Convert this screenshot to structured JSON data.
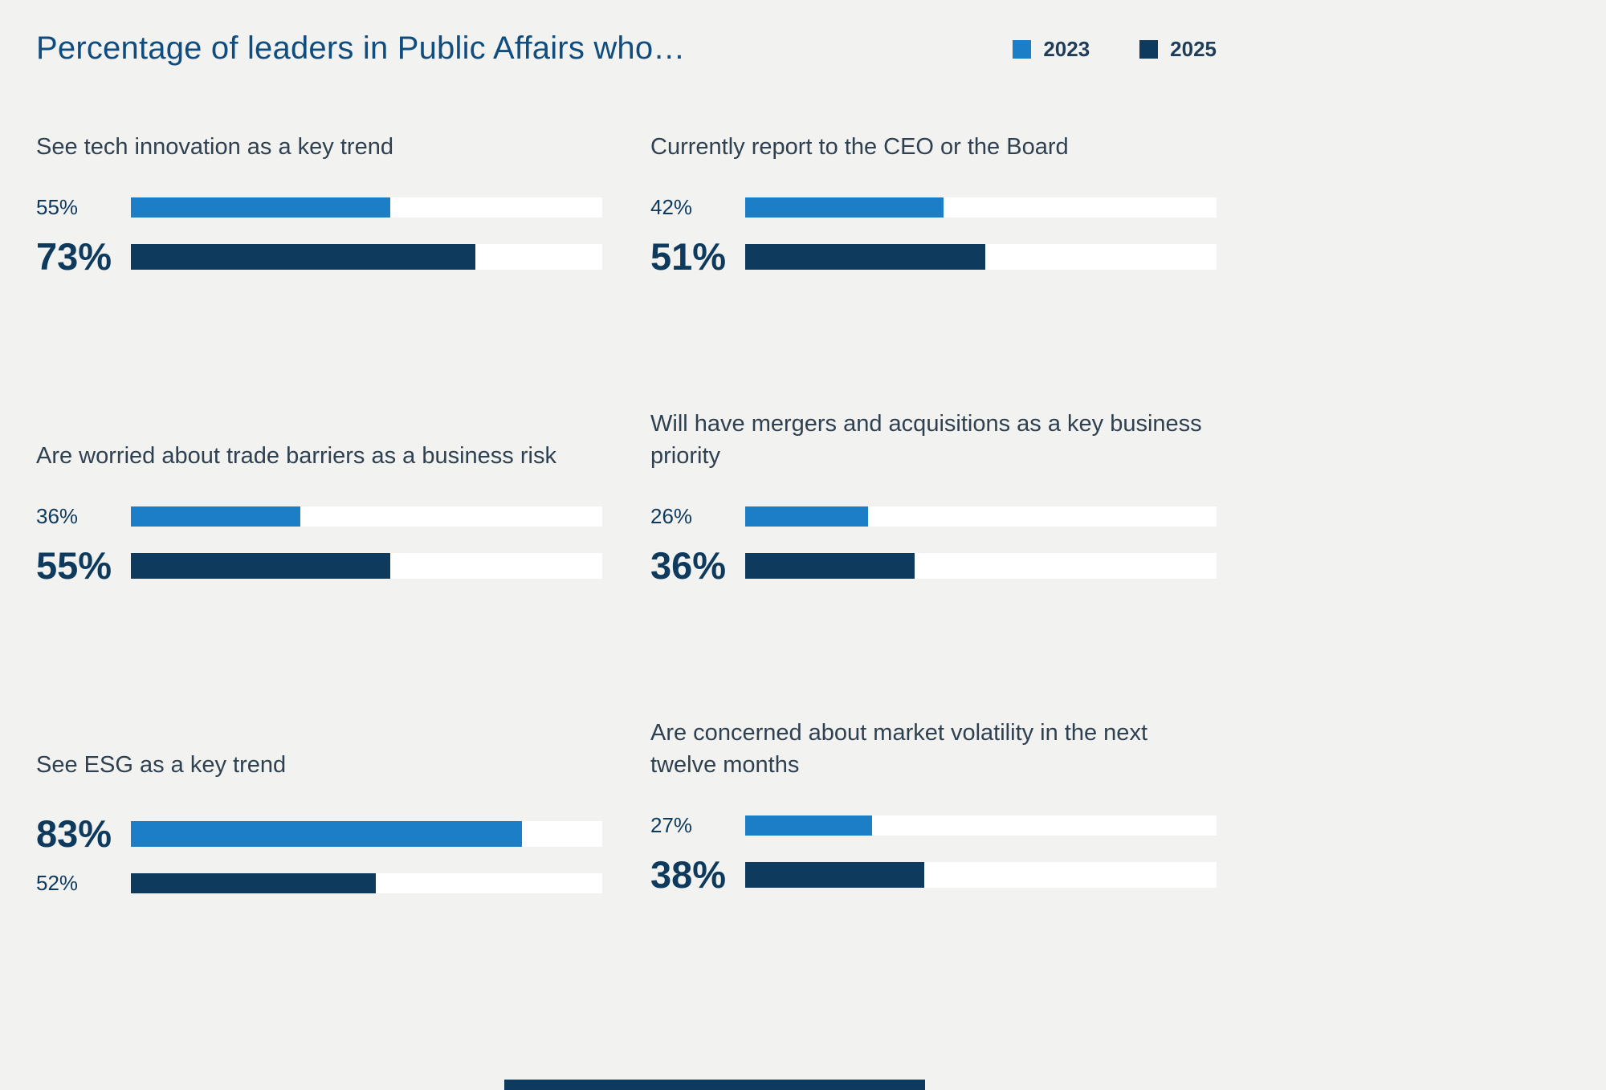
{
  "page": {
    "title": "Percentage of leaders in Public Affairs who…",
    "background": "#f2f2f0"
  },
  "legend": {
    "items": [
      {
        "label": "2023",
        "color": "#1b7ec6"
      },
      {
        "label": "2025",
        "color": "#0e3a5e"
      }
    ]
  },
  "colors": {
    "series_2023": "#1b7ec6",
    "series_2025": "#0e3a5e",
    "bar_track": "#ffffff",
    "title_text": "#0f4c7f",
    "panel_title_text": "#2f4050",
    "value_text": "#0e3a5e"
  },
  "chart_data": {
    "type": "bar",
    "orientation": "horizontal",
    "unit": "percent",
    "title": "Percentage of leaders in Public Affairs who…",
    "series_names": [
      "2023",
      "2025"
    ],
    "xlim": [
      0,
      100
    ],
    "legend_position": "top-right",
    "grid": false,
    "panels": [
      {
        "title": "See tech innovation as a key trend",
        "series": [
          {
            "name": "2023",
            "value": 55,
            "label": "55%",
            "emphasized": false
          },
          {
            "name": "2025",
            "value": 73,
            "label": "73%",
            "emphasized": true
          }
        ]
      },
      {
        "title": "Currently report to the CEO or the Board",
        "series": [
          {
            "name": "2023",
            "value": 42,
            "label": "42%",
            "emphasized": false
          },
          {
            "name": "2025",
            "value": 51,
            "label": "51%",
            "emphasized": true
          }
        ]
      },
      {
        "title": "Are worried about trade barriers as a business risk",
        "series": [
          {
            "name": "2023",
            "value": 36,
            "label": "36%",
            "emphasized": false
          },
          {
            "name": "2025",
            "value": 55,
            "label": "55%",
            "emphasized": true
          }
        ]
      },
      {
        "title": "Will have mergers and acquisitions as a key business priority",
        "series": [
          {
            "name": "2023",
            "value": 26,
            "label": "26%",
            "emphasized": false
          },
          {
            "name": "2025",
            "value": 36,
            "label": "36%",
            "emphasized": true
          }
        ]
      },
      {
        "title": "See ESG as a key trend",
        "series": [
          {
            "name": "2023",
            "value": 83,
            "label": "83%",
            "emphasized": true
          },
          {
            "name": "2025",
            "value": 52,
            "label": "52%",
            "emphasized": false
          }
        ]
      },
      {
        "title": "Are concerned about market volatility in the next twelve months",
        "series": [
          {
            "name": "2023",
            "value": 27,
            "label": "27%",
            "emphasized": false
          },
          {
            "name": "2025",
            "value": 38,
            "label": "38%",
            "emphasized": true
          }
        ]
      }
    ]
  }
}
